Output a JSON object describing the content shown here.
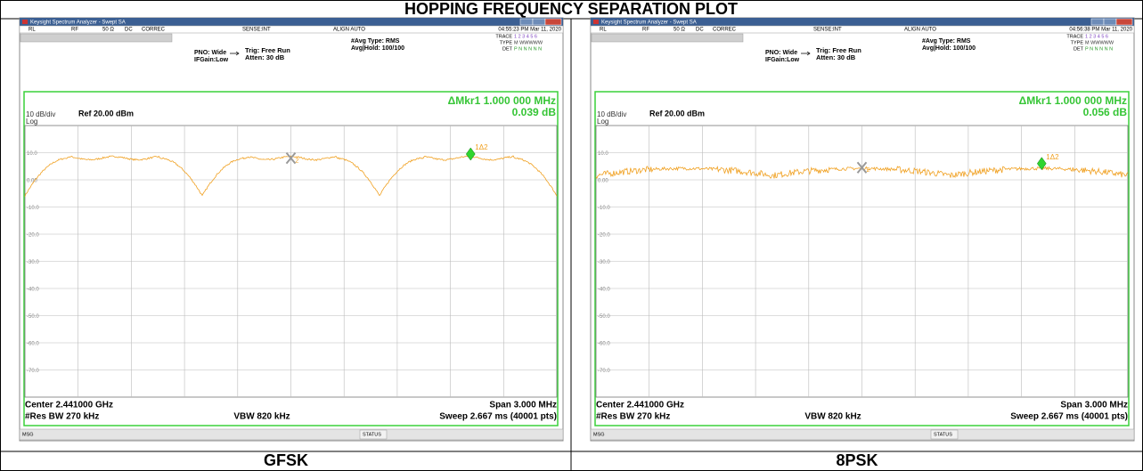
{
  "title": "HOPPING FREQUENCY SEPARATION PLOT",
  "plots": [
    {
      "label": "GFSK",
      "screen": {
        "window_title": "Keysight Spectrum Analyzer - Swept SA",
        "toolbar": [
          "RL",
          "RF",
          "50 Ω",
          "DC",
          "CORREC",
          "SENSE:INT",
          "ALIGN AUTO"
        ],
        "timestamp": "04:55:23 PM Mar 11, 2020",
        "avg_type": "#Avg Type: RMS",
        "avg_hold": "Avg|Hold: 100/100",
        "trace_label": "TRACE",
        "trace_value": "1 2 3 4 5 6",
        "type_label": "TYPE",
        "type_value": "M WWWWW",
        "det_label": "DET",
        "det_value": "P N N N N N",
        "pno": "PNO: Wide",
        "ifgain": "IFGain:Low",
        "trig": "Trig: Free Run",
        "atten": "Atten: 30 dB",
        "marker_readout": "ΔMkr1 1.000 000 MHz",
        "marker_value": "0.039 dB",
        "scale": "10 dB/div",
        "log": "Log",
        "ref": "Ref 20.00 dBm",
        "y_labels": [
          "10.0",
          "0.00",
          "-10.0",
          "-20.0",
          "-30.0",
          "-40.0",
          "-50.0",
          "-60.0",
          "-70.0"
        ],
        "marker_label": "1Δ2",
        "x_marker_label": "2",
        "center": "Center 2.441000 GHz",
        "res_bw": "#Res BW 270 kHz",
        "vbw": "VBW 820 kHz",
        "span": "Span 3.000 MHz",
        "sweep": "Sweep  2.667 ms (40001 pts)",
        "msg": "MSG",
        "status": "STATUS"
      }
    },
    {
      "label": "8PSK",
      "screen": {
        "window_title": "Keysight Spectrum Analyzer - Swept SA",
        "toolbar": [
          "RL",
          "RF",
          "50 Ω",
          "DC",
          "CORREC",
          "SENSE:INT",
          "ALIGN AUTO"
        ],
        "timestamp": "04:56:38 PM Mar 11, 2020",
        "avg_type": "#Avg Type: RMS",
        "avg_hold": "Avg|Hold: 100/100",
        "trace_label": "TRACE",
        "trace_value": "1 2 3 4 5 6",
        "type_label": "TYPE",
        "type_value": "M WWWWW",
        "det_label": "DET",
        "det_value": "P N N N N N",
        "pno": "PNO: Wide",
        "ifgain": "IFGain:Low",
        "trig": "Trig: Free Run",
        "atten": "Atten: 30 dB",
        "marker_readout": "ΔMkr1 1.000 000 MHz",
        "marker_value": "0.056 dB",
        "scale": "10 dB/div",
        "log": "Log",
        "ref": "Ref 20.00 dBm",
        "y_labels": [
          "10.0",
          "0.00",
          "-10.0",
          "-20.0",
          "-30.0",
          "-40.0",
          "-50.0",
          "-60.0",
          "-70.0"
        ],
        "marker_label": "1Δ2",
        "x_marker_label": "2",
        "center": "Center 2.441000 GHz",
        "res_bw": "#Res BW 270 kHz",
        "vbw": "VBW 820 kHz",
        "span": "Span 3.000 MHz",
        "sweep": "Sweep  2.667 ms (40001 pts)",
        "msg": "MSG",
        "status": "STATUS"
      }
    }
  ]
}
